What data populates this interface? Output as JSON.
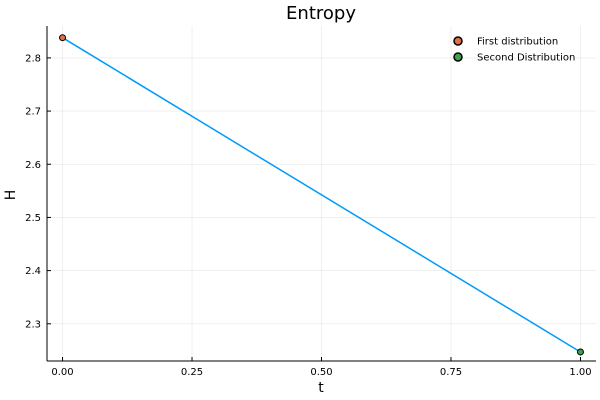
{
  "chart_data": {
    "type": "line",
    "title": "Entropy",
    "xlabel": "t",
    "ylabel": "H",
    "xlim": [
      -0.03,
      1.03
    ],
    "ylim": [
      2.23,
      2.86
    ],
    "xticks": [
      0.0,
      0.25,
      0.5,
      0.75,
      1.0
    ],
    "xtick_labels": [
      "0.00",
      "0.25",
      "0.50",
      "0.75",
      "1.00"
    ],
    "yticks": [
      2.3,
      2.4,
      2.5,
      2.6,
      2.7,
      2.8
    ],
    "ytick_labels": [
      "2.3",
      "2.4",
      "2.5",
      "2.6",
      "2.7",
      "2.8"
    ],
    "grid": true,
    "legend_position": "top-right",
    "line": {
      "x": [
        0.0,
        1.0
      ],
      "y": [
        2.838,
        2.247
      ],
      "color": "#009AF9"
    },
    "points": [
      {
        "name": "First distribution",
        "x": 0.0,
        "y": 2.838,
        "color": "#E26F46"
      },
      {
        "name": "Second Distribution",
        "x": 1.0,
        "y": 2.247,
        "color": "#3DA44D"
      }
    ]
  }
}
